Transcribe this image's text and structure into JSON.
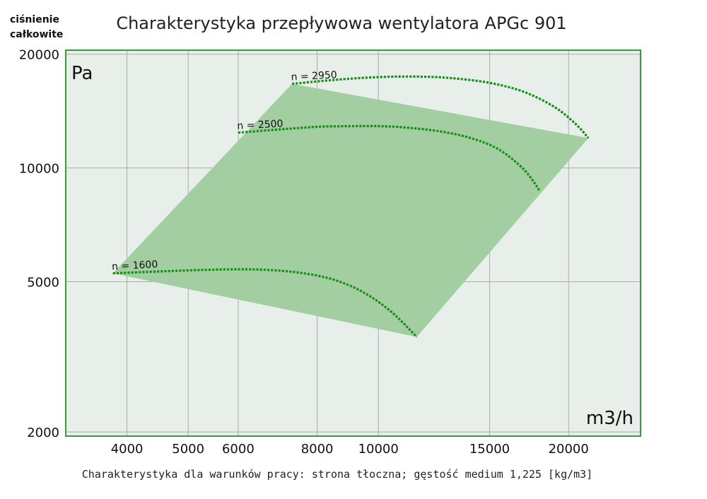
{
  "chart_data": {
    "type": "area",
    "title": "Charakterystyka przepływowa wentylatora APGc 901",
    "ylabel_line1": "ciśnienie",
    "ylabel_line2": "całkowite",
    "y_unit": "Pa",
    "x_unit": "m3/h",
    "caption": "Charakterystyka dla warunków pracy: strona tłoczna; gęstość medium 1,225 [kg/m3]",
    "x_scale": "log",
    "y_scale": "log",
    "xlim": [
      3200,
      26000
    ],
    "ylim": [
      1950,
      20500
    ],
    "x_ticks": [
      4000,
      5000,
      6000,
      8000,
      10000,
      15000,
      20000
    ],
    "x_tick_labels": [
      "4000",
      "5000",
      "6000",
      "8000",
      "10000",
      "15000",
      "20000"
    ],
    "y_ticks": [
      2000,
      5000,
      10000,
      20000
    ],
    "y_tick_labels": [
      "2000",
      "5000",
      "10000",
      "20000"
    ],
    "grid": true,
    "colors": {
      "plot_bg": "#e8eeea",
      "frame": "#3a9a3a",
      "region": "#a2cea2",
      "curve": "#149014",
      "grid": "#a9ada9"
    },
    "series": [
      {
        "name": "n = 1600",
        "label": "n = 1600",
        "x": [
          3800,
          4500,
          5500,
          6500,
          7500,
          8500,
          9500,
          10500,
          11500
        ],
        "y": [
          5260,
          5320,
          5380,
          5380,
          5280,
          5060,
          4670,
          4150,
          3570
        ]
      },
      {
        "name": "n = 2500",
        "label": "n = 2500",
        "x": [
          6000,
          7000,
          8000,
          9000,
          10000,
          11000,
          12500,
          14000,
          15500,
          17000,
          18000
        ],
        "y": [
          12400,
          12650,
          12850,
          12900,
          12900,
          12800,
          12500,
          12000,
          11200,
          9900,
          8700
        ]
      },
      {
        "name": "n = 2950",
        "label": "n = 2950",
        "x": [
          7300,
          8500,
          10000,
          11500,
          13000,
          15000,
          17000,
          19000,
          20500,
          21500
        ],
        "y": [
          16700,
          17100,
          17400,
          17450,
          17300,
          16800,
          15900,
          14500,
          13100,
          12000
        ]
      }
    ],
    "operating_region": {
      "x": [
        3800,
        7300,
        21500,
        11500
      ],
      "y": [
        5260,
        16700,
        12000,
        3570
      ]
    }
  }
}
